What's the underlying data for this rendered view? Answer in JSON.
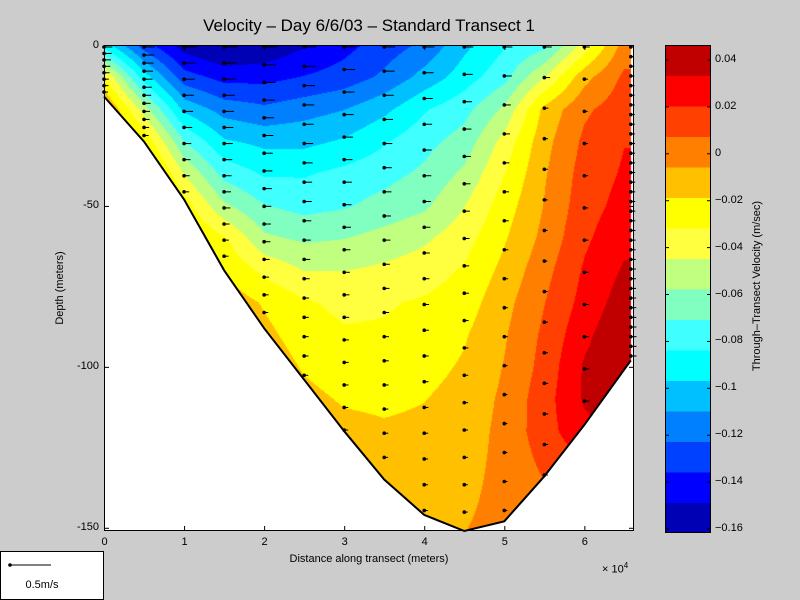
{
  "chart_data": {
    "type": "heatmap",
    "subtype": "filled-contour with velocity vectors",
    "title": "Velocity – Day 6/6/03 – Standard Transect 1",
    "xlabel": "Distance along transect (meters)",
    "x_multiplier_label": "× 10",
    "x_multiplier_exp": "4",
    "ylabel": "Depth (meters)",
    "xlim": [
      0,
      6.62
    ],
    "ylim": [
      -151,
      0
    ],
    "xticks": [
      0,
      1,
      2,
      3,
      4,
      5,
      6
    ],
    "xtick_labels": [
      "0",
      "1",
      "2",
      "3",
      "4",
      "5",
      "6"
    ],
    "yticks": [
      0,
      -50,
      -100,
      -150
    ],
    "ytick_labels": [
      "0",
      "-50",
      "-100",
      "-150"
    ],
    "colorbar": {
      "label": "Through–Transect Velocity (m/sec)",
      "range": [
        -0.1617,
        0.0464
      ],
      "levels": 16,
      "ticks": [
        0.04,
        0.02,
        0,
        -0.02,
        -0.04,
        -0.06,
        -0.08,
        -0.1,
        -0.12,
        -0.14,
        -0.16
      ],
      "tick_labels": [
        "0.04",
        "0.02",
        "0",
        "−0.02",
        "−0.04",
        "−0.06",
        "−0.08",
        "−0.1",
        "−0.12",
        "−0.14",
        "−0.16"
      ],
      "colors": [
        "#0000b4",
        "#0000ff",
        "#0040ff",
        "#0080ff",
        "#00c0ff",
        "#00ffff",
        "#40ffff",
        "#80ffc0",
        "#c0ff80",
        "#ffff40",
        "#ffff00",
        "#ffc000",
        "#ff8000",
        "#ff4000",
        "#ff0000",
        "#c00000"
      ]
    },
    "grid_x": [
      0,
      0.5,
      1,
      1.5,
      2,
      2.5,
      3,
      3.5,
      4,
      4.5,
      5,
      5.5,
      6,
      6.5
    ],
    "grid_depth": [
      0,
      -10,
      -20,
      -30,
      -40,
      -50,
      -60,
      -70,
      -80,
      -90,
      -100,
      -110,
      -120,
      -130,
      -140,
      -150
    ],
    "velocity": [
      [
        -0.09,
        -0.13,
        -0.155,
        -0.165,
        -0.16,
        -0.15,
        -0.14,
        -0.13,
        -0.12,
        -0.1,
        -0.085,
        -0.075,
        -0.04,
        0
      ],
      [
        -0.03,
        -0.09,
        -0.13,
        -0.14,
        -0.14,
        -0.135,
        -0.13,
        -0.12,
        -0.105,
        -0.09,
        -0.075,
        -0.045,
        -0.01,
        0.01
      ],
      [
        0,
        -0.05,
        -0.1,
        -0.115,
        -0.12,
        -0.115,
        -0.11,
        -0.1,
        -0.085,
        -0.075,
        -0.055,
        -0.015,
        0.005,
        0.015
      ],
      [
        0.01,
        -0.02,
        -0.07,
        -0.095,
        -0.1,
        -0.1,
        -0.095,
        -0.085,
        -0.075,
        -0.065,
        -0.04,
        -0.01,
        0.01,
        0.02
      ],
      [
        0.01,
        0,
        -0.045,
        -0.075,
        -0.085,
        -0.085,
        -0.08,
        -0.075,
        -0.068,
        -0.055,
        -0.032,
        -0.007,
        0.013,
        0.022
      ],
      [
        0.01,
        0,
        -0.025,
        -0.055,
        -0.07,
        -0.075,
        -0.072,
        -0.066,
        -0.06,
        -0.045,
        -0.025,
        -0.005,
        0.015,
        0.025
      ],
      [
        0.01,
        0,
        -0.015,
        -0.03,
        -0.055,
        -0.06,
        -0.058,
        -0.053,
        -0.047,
        -0.037,
        -0.02,
        -0.002,
        0.018,
        0.03
      ],
      [
        0.01,
        0.01,
        -0.005,
        -0.02,
        -0.035,
        -0.045,
        -0.045,
        -0.042,
        -0.038,
        -0.03,
        -0.015,
        0.003,
        0.022,
        0.035
      ],
      [
        0.01,
        0.01,
        0,
        -0.01,
        -0.02,
        -0.03,
        -0.035,
        -0.033,
        -0.03,
        -0.025,
        -0.01,
        0.007,
        0.025,
        0.04
      ],
      [
        0.01,
        0.01,
        0,
        -0.005,
        -0.015,
        -0.025,
        -0.03,
        -0.03,
        -0.027,
        -0.02,
        -0.007,
        0.01,
        0.03,
        0.045
      ],
      [
        0.01,
        0.01,
        0,
        0,
        -0.01,
        -0.02,
        -0.025,
        -0.025,
        -0.023,
        -0.017,
        -0.005,
        0.012,
        0.035,
        0.045
      ],
      [
        0,
        0,
        0,
        0,
        -0.005,
        -0.015,
        -0.02,
        -0.021,
        -0.019,
        -0.014,
        -0.003,
        0.015,
        0.035,
        0.04
      ],
      [
        0,
        0,
        0,
        0,
        0,
        -0.01,
        -0.015,
        -0.017,
        -0.016,
        -0.012,
        -0.002,
        0.015,
        0.03,
        0.035
      ],
      [
        0,
        0,
        0,
        0,
        0,
        -0.005,
        -0.01,
        -0.013,
        -0.013,
        -0.01,
        -0.002,
        0.01,
        0.02,
        0.03
      ],
      [
        0,
        0,
        0,
        0,
        0,
        0,
        -0.005,
        -0.01,
        -0.01,
        -0.008,
        -0.002,
        0.005,
        0.015,
        0.02
      ],
      [
        0,
        0,
        0,
        0,
        0,
        0,
        0,
        -0.006,
        -0.007,
        -0.006,
        -0.002,
        0.003,
        0.01,
        0.015
      ]
    ],
    "bathymetry": [
      [
        0,
        -16
      ],
      [
        0.5,
        -30
      ],
      [
        1,
        -48
      ],
      [
        1.5,
        -70
      ],
      [
        2,
        -88
      ],
      [
        2.5,
        -104
      ],
      [
        3,
        -120
      ],
      [
        3.5,
        -135
      ],
      [
        4,
        -146
      ],
      [
        4.5,
        -151
      ],
      [
        5,
        -148
      ],
      [
        5.5,
        -134
      ],
      [
        6,
        -118
      ],
      [
        6.58,
        -98
      ]
    ],
    "stations": [
      {
        "x": 0,
        "dz": 2
      },
      {
        "x": 0.5,
        "dz": 2.5
      },
      {
        "x": 1,
        "dz": 5
      },
      {
        "x": 1.5,
        "dz": 5
      },
      {
        "x": 2,
        "dz": 5.5
      },
      {
        "x": 2.5,
        "dz": 6
      },
      {
        "x": 3,
        "dz": 7
      },
      {
        "x": 3.5,
        "dz": 7.5
      },
      {
        "x": 4,
        "dz": 8
      },
      {
        "x": 4.5,
        "dz": 8.5
      },
      {
        "x": 5,
        "dz": 9
      },
      {
        "x": 5.5,
        "dz": 9.5
      },
      {
        "x": 6,
        "dz": 10
      },
      {
        "x": 6.58,
        "dz": 3
      }
    ],
    "vector_legend": {
      "label": "0.5m/s",
      "value": 0.5
    }
  }
}
